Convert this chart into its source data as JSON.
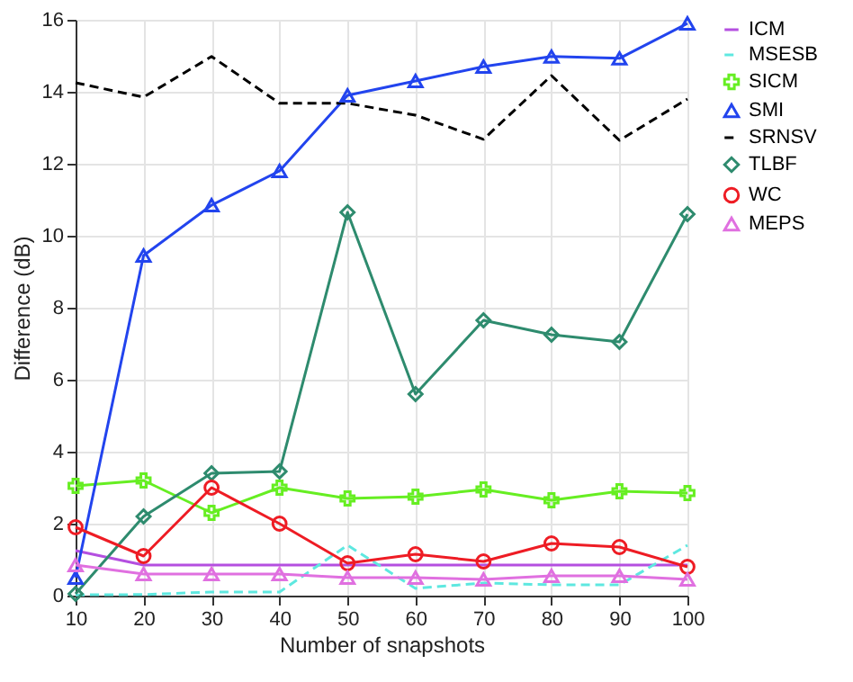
{
  "chart_data": {
    "type": "line",
    "xlabel": "Number of snapshots",
    "ylabel": "Difference (dB)",
    "x": [
      10,
      20,
      30,
      40,
      50,
      60,
      70,
      80,
      90,
      100
    ],
    "xlim": [
      10,
      100
    ],
    "xticks": [
      10,
      20,
      30,
      40,
      50,
      60,
      70,
      80,
      90,
      100
    ],
    "ylim": [
      0,
      16
    ],
    "yticks": [
      0,
      2,
      4,
      6,
      8,
      10,
      12,
      14,
      16
    ],
    "grid": true,
    "legend": "right",
    "series": [
      {
        "name": "ICM",
        "color": "#b44fe0",
        "marker": "none",
        "line_style": "solid",
        "values": [
          1.25,
          0.85,
          0.85,
          0.85,
          0.85,
          0.85,
          0.85,
          0.85,
          0.85,
          0.85
        ]
      },
      {
        "name": "MSESB",
        "color": "#5ee8e0",
        "marker": "none",
        "line_style": "dashed",
        "values": [
          0.02,
          0.03,
          0.1,
          0.1,
          1.4,
          0.2,
          0.35,
          0.3,
          0.3,
          1.4
        ]
      },
      {
        "name": "SICM",
        "color": "#66ee22",
        "marker": "cross",
        "line_style": "solid",
        "values": [
          3.05,
          3.2,
          2.3,
          3.0,
          2.7,
          2.75,
          2.95,
          2.65,
          2.9,
          2.85
        ]
      },
      {
        "name": "SMI",
        "color": "#2244ee",
        "marker": "triangle",
        "line_style": "solid",
        "values": [
          0.5,
          9.45,
          10.85,
          11.8,
          13.9,
          14.3,
          14.7,
          14.98,
          14.93,
          15.9
        ]
      },
      {
        "name": "SRNSV",
        "color": "#000000",
        "marker": "none",
        "line_style": "dashed",
        "values": [
          14.25,
          13.85,
          14.98,
          13.68,
          13.68,
          13.35,
          12.68,
          14.45,
          12.65,
          13.8
        ]
      },
      {
        "name": "TLBF",
        "color": "#2e8b6e",
        "marker": "diamond",
        "line_style": "solid",
        "values": [
          0.05,
          2.2,
          3.4,
          3.45,
          10.65,
          5.6,
          7.65,
          7.25,
          7.05,
          10.6
        ]
      },
      {
        "name": "WC",
        "color": "#ee1c24",
        "marker": "circle",
        "line_style": "solid",
        "values": [
          1.9,
          1.1,
          3.0,
          2.0,
          0.9,
          1.15,
          0.95,
          1.45,
          1.35,
          0.8
        ]
      },
      {
        "name": "MEPS",
        "color": "#e070e0",
        "marker": "triangle",
        "line_style": "solid",
        "values": [
          0.85,
          0.6,
          0.6,
          0.6,
          0.5,
          0.5,
          0.45,
          0.55,
          0.55,
          0.45
        ]
      }
    ]
  }
}
